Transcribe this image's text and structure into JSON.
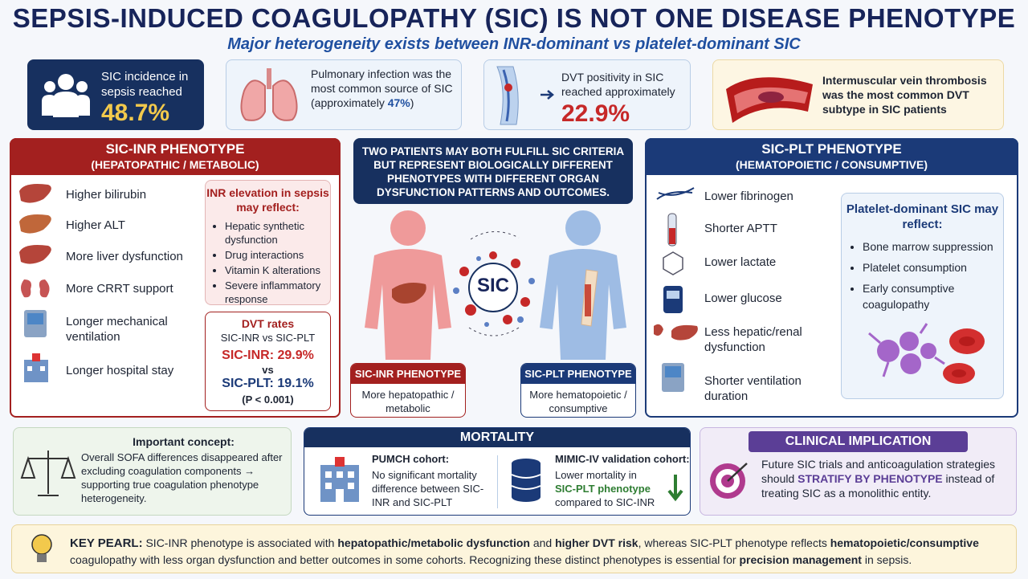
{
  "header": {
    "title": "SEPSIS-INDUCED COAGULOPATHY (SIC) IS NOT ONE DISEASE PHENOTYPE",
    "subtitle": "Major heterogeneity exists between INR-dominant vs platelet-dominant SIC"
  },
  "stats": [
    {
      "text": "SIC incidence in sepsis reached",
      "value": "48.7%"
    },
    {
      "text": "Pulmonary infection was the most common source of SIC (approximately",
      "value": "47%",
      "suffix": ")"
    },
    {
      "text": "DVT positivity in SIC reached approximately",
      "value": "22.9%"
    },
    {
      "text": "Intermuscular vein thrombosis was the most common DVT subtype in SIC patients"
    }
  ],
  "inr_panel": {
    "title": "SIC-INR PHENOTYPE",
    "subtitle": "(HEPATOPATHIC / METABOLIC)",
    "items": [
      "Higher bilirubin",
      "Higher ALT",
      "More liver dysfunction",
      "More CRRT support",
      "Longer mechanical ventilation",
      "Longer hospital stay"
    ],
    "reflect": {
      "title": "INR elevation in sepsis may reflect:",
      "bullets": [
        "Hepatic synthetic dysfunction",
        "Drug interactions",
        "Vitamin K alterations",
        "Severe inflammatory response"
      ]
    },
    "dvt": {
      "title": "DVT rates",
      "subtitle": "SIC-INR vs SIC-PLT",
      "inr": "SIC-INR: 29.9%",
      "vs": "vs",
      "plt": "SIC-PLT: 19.1%",
      "p": "(P < 0.001)"
    }
  },
  "center": {
    "callout": "TWO PATIENTS MAY BOTH FULFILL SIC CRITERIA BUT REPRESENT BIOLOGICALLY DIFFERENT PHENOTYPES WITH DIFFERENT ORGAN DYSFUNCTION PATTERNS AND OUTCOMES.",
    "hub": "SIC",
    "inr_label": {
      "title": "SIC-INR PHENOTYPE",
      "text": "More hepatopathic / metabolic"
    },
    "plt_label": {
      "title": "SIC-PLT PHENOTYPE",
      "text": "More hematopoietic / consumptive"
    }
  },
  "plt_panel": {
    "title": "SIC-PLT PHENOTYPE",
    "subtitle": "(HEMATOPOIETIC / CONSUMPTIVE)",
    "items": [
      "Lower fibrinogen",
      "Shorter APTT",
      "Lower lactate",
      "Lower glucose",
      "Less hepatic/renal dysfunction",
      "Shorter ventilation duration"
    ],
    "reflect": {
      "title": "Platelet-dominant SIC may reflect:",
      "bullets": [
        "Bone marrow suppression",
        "Platelet consumption",
        "Early consumptive coagulopathy"
      ]
    }
  },
  "concept": {
    "title": "Important concept:",
    "text": "Overall SOFA differences disappeared after excluding coagulation components → supporting true coagulation phenotype heterogeneity."
  },
  "mortality": {
    "title": "MORTALITY",
    "pumch": {
      "title": "PUMCH cohort:",
      "text": "No significant mortality difference between SIC-INR and SIC-PLT"
    },
    "mimic": {
      "title": "MIMIC-IV validation cohort:",
      "text": [
        "Lower mortality in",
        "SIC-PLT phenotype",
        "compared to SIC-INR"
      ]
    }
  },
  "implication": {
    "title": "CLINICAL IMPLICATION",
    "text": [
      "Future SIC trials and anticoagulation strategies should",
      "STRATIFY BY PHENOTYPE",
      "instead of treating SIC as a monolithic entity."
    ]
  },
  "pearl": {
    "label": "KEY PEARL:",
    "text": [
      "SIC-INR phenotype is associated with",
      "hepatopathic/metabolic dysfunction",
      "and",
      "higher DVT risk",
      ", whereas SIC-PLT phenotype reflects",
      "hematopoietic/consumptive",
      "coagulopathy with less organ dysfunction and better outcomes in some cohorts. Recognizing these distinct phenotypes is essential for",
      "precision management",
      "in sepsis."
    ]
  }
}
